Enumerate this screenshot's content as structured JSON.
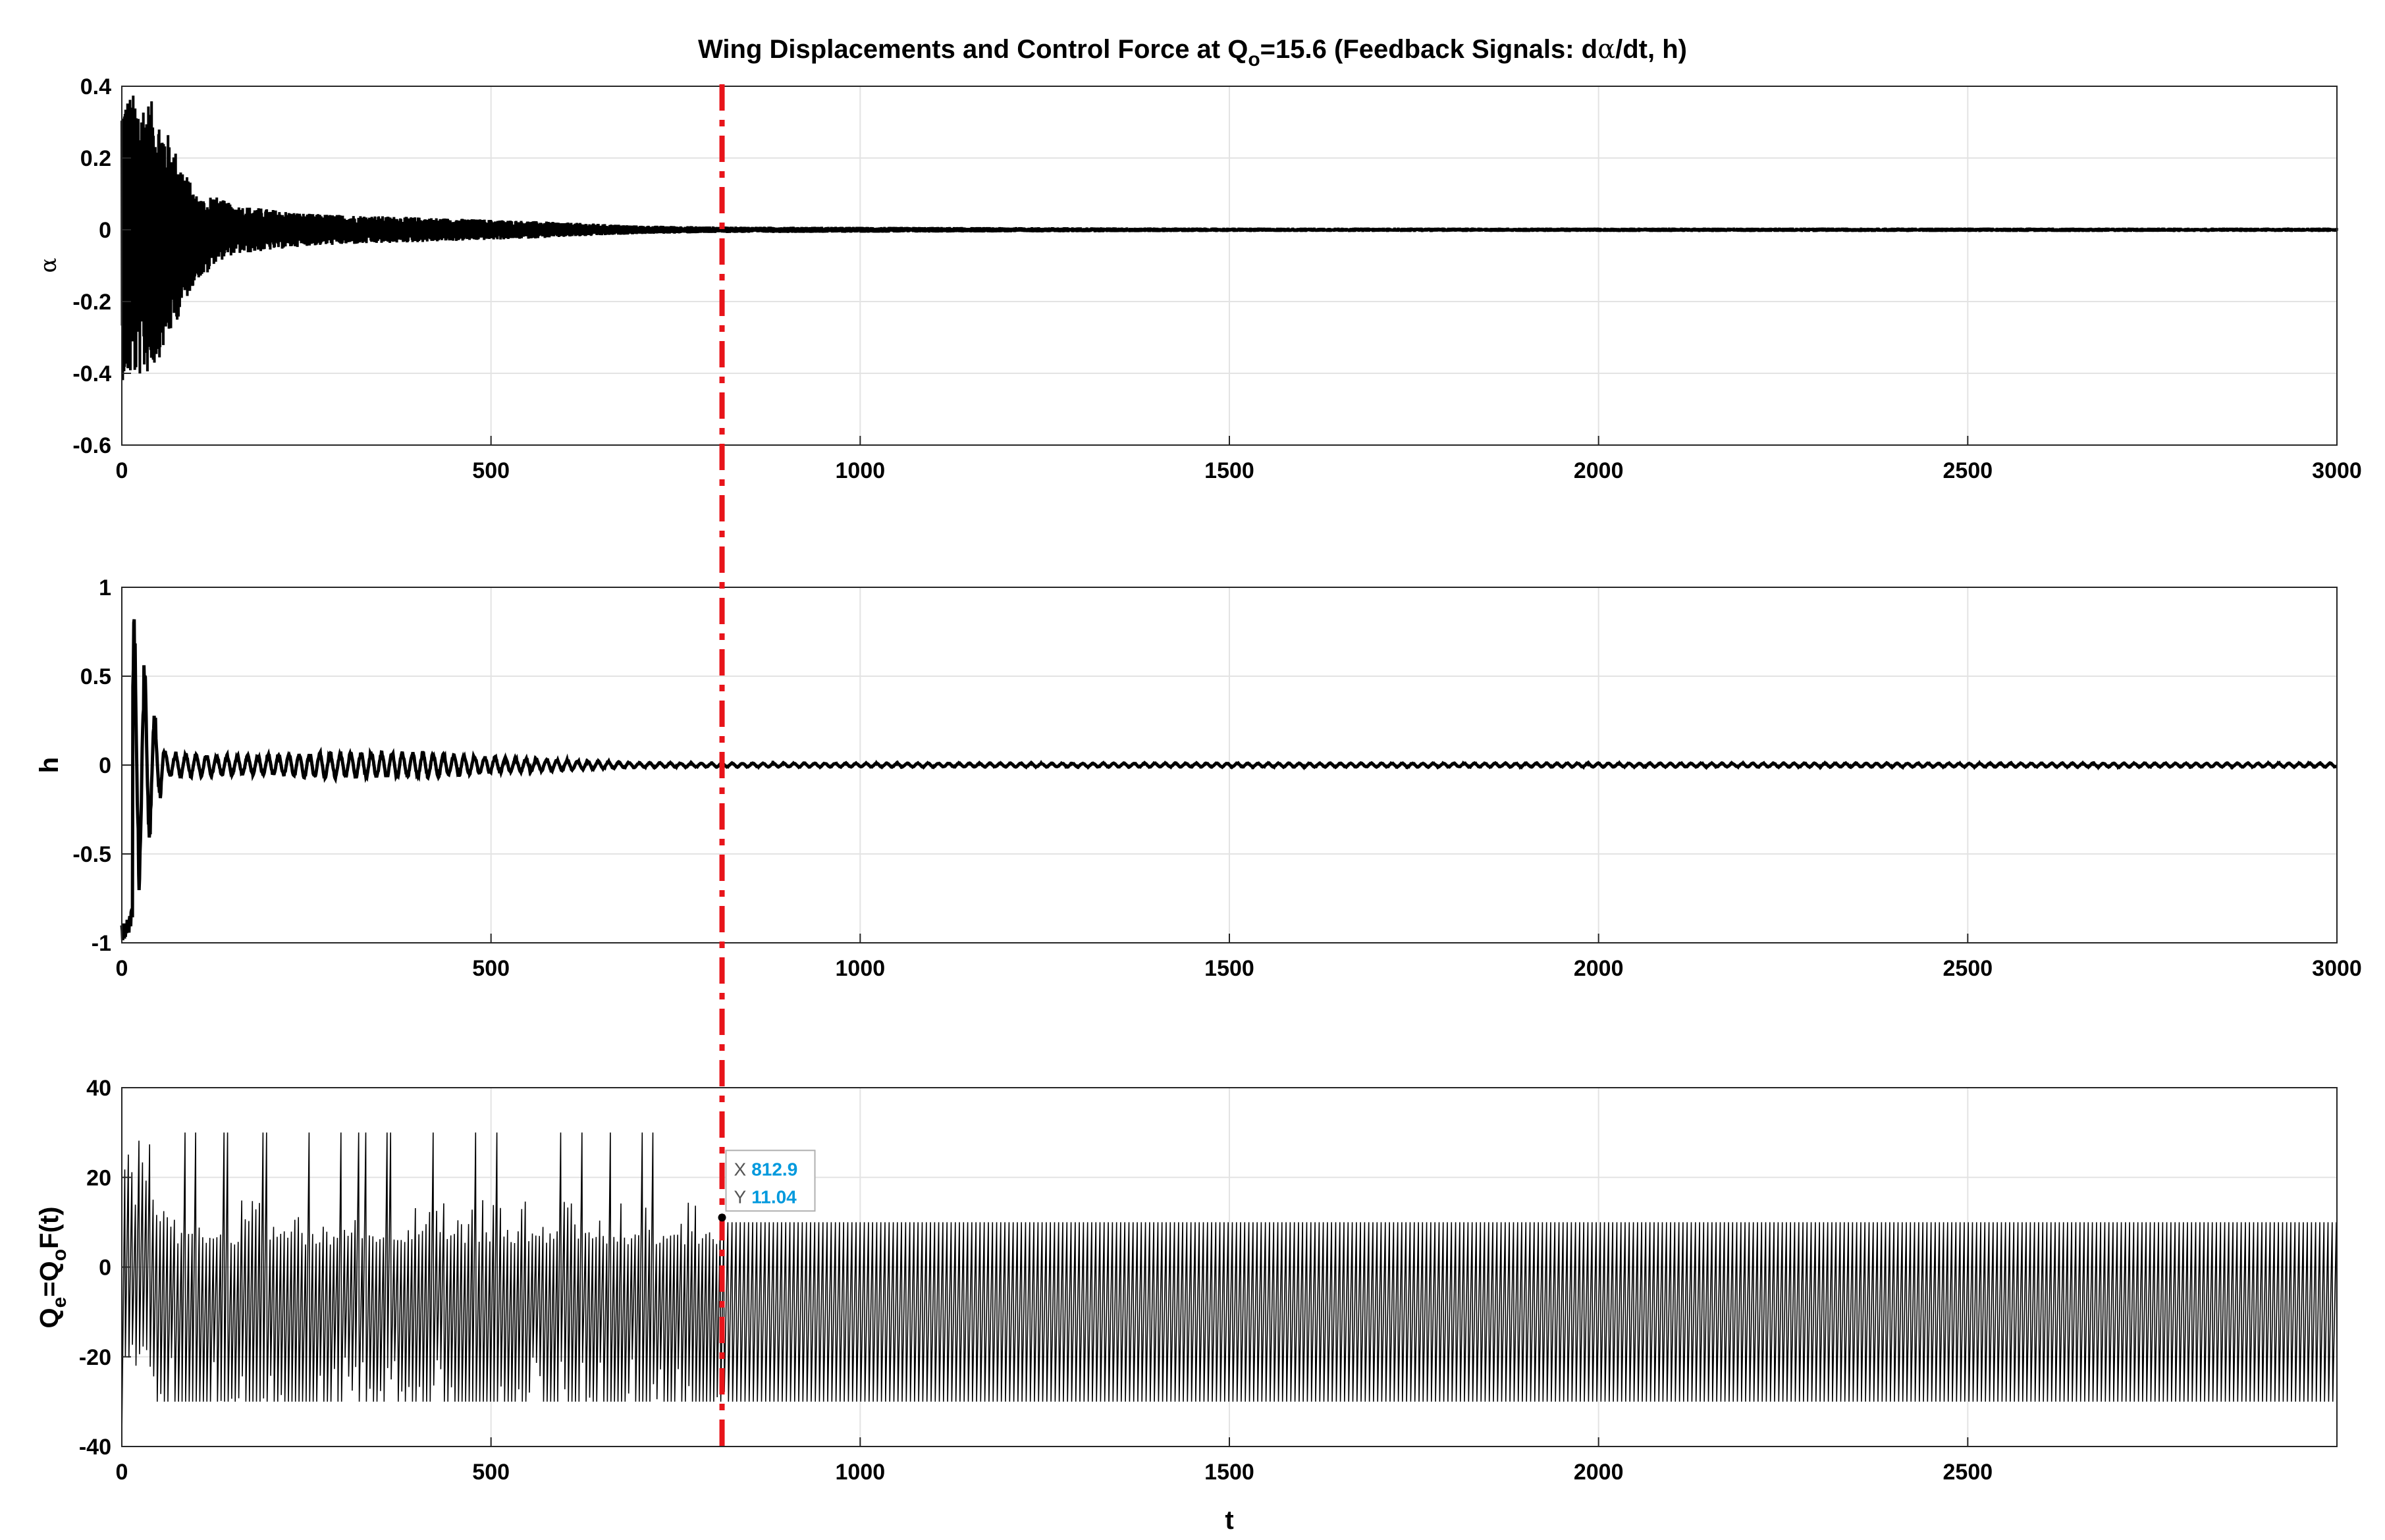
{
  "title": {
    "prefix": "Wing Displacements and Control Force at Q",
    "sub": "o",
    "middle": "=15.6 (Feedback Signals: d",
    "greek": "α",
    "suffix": "/dt, h)"
  },
  "marker_color": "#e8141a",
  "datatip_value_color": "#0099dd",
  "chart_data": [
    {
      "type": "line",
      "ylabel": "α",
      "xlim": [
        0,
        3000
      ],
      "ylim": [
        -0.6,
        0.4
      ],
      "xticks": [
        "0",
        "500",
        "1000",
        "1500",
        "2000",
        "2500",
        "3000"
      ],
      "yticks": [
        "0.4",
        "0.2",
        "0",
        "-0.2",
        "-0.4",
        "-0.6"
      ],
      "grid": true,
      "envelope": {
        "x": [
          0,
          15,
          40,
          60,
          100,
          150,
          250,
          400,
          550,
          700,
          812.9,
          1500,
          3000
        ],
        "amp": [
          0.4,
          0.4,
          0.38,
          0.3,
          0.12,
          0.07,
          0.045,
          0.035,
          0.025,
          0.012,
          0.009,
          0.006,
          0.006
        ]
      }
    },
    {
      "type": "line",
      "ylabel": "h",
      "xlim": [
        0,
        3000
      ],
      "ylim": [
        -1,
        1
      ],
      "xticks": [
        "0",
        "500",
        "1000",
        "1500",
        "2000",
        "2500",
        "3000"
      ],
      "yticks": [
        "1",
        "0.5",
        "0",
        "-0.5",
        "-1"
      ],
      "grid": true,
      "envelope": {
        "x": [
          0,
          10,
          30,
          45,
          60,
          150,
          300,
          400,
          550,
          700,
          812.9,
          3000
        ],
        "amp": [
          1,
          0.95,
          0.6,
          0.3,
          0.08,
          0.06,
          0.08,
          0.08,
          0.04,
          0.015,
          0.012,
          0.012
        ]
      }
    },
    {
      "type": "line",
      "ylabel": {
        "q": "Q",
        "e": "e",
        "eq": "=Q",
        "o": "o",
        "f": "F(t)"
      },
      "xlabel": "t",
      "xlim": [
        0,
        3000
      ],
      "ylim": [
        -40,
        40
      ],
      "xticks": [
        "0",
        "500",
        "1000",
        "1500",
        "2000",
        "2500"
      ],
      "xtick_values": [
        0,
        500,
        1000,
        1500,
        2000,
        2500
      ],
      "yticks": [
        "40",
        "20",
        "0",
        "-20",
        "-40"
      ],
      "grid": true,
      "range_before": {
        "upper": 30,
        "lower": -30
      },
      "range_after": {
        "upper": 10,
        "lower": -30
      },
      "datatip": {
        "x_label": "X",
        "x_value": "812.9",
        "y_label": "Y",
        "y_value": "11.04"
      }
    }
  ],
  "marker_line": {
    "x": 812.9,
    "style": "dash-dot",
    "color": "red"
  }
}
